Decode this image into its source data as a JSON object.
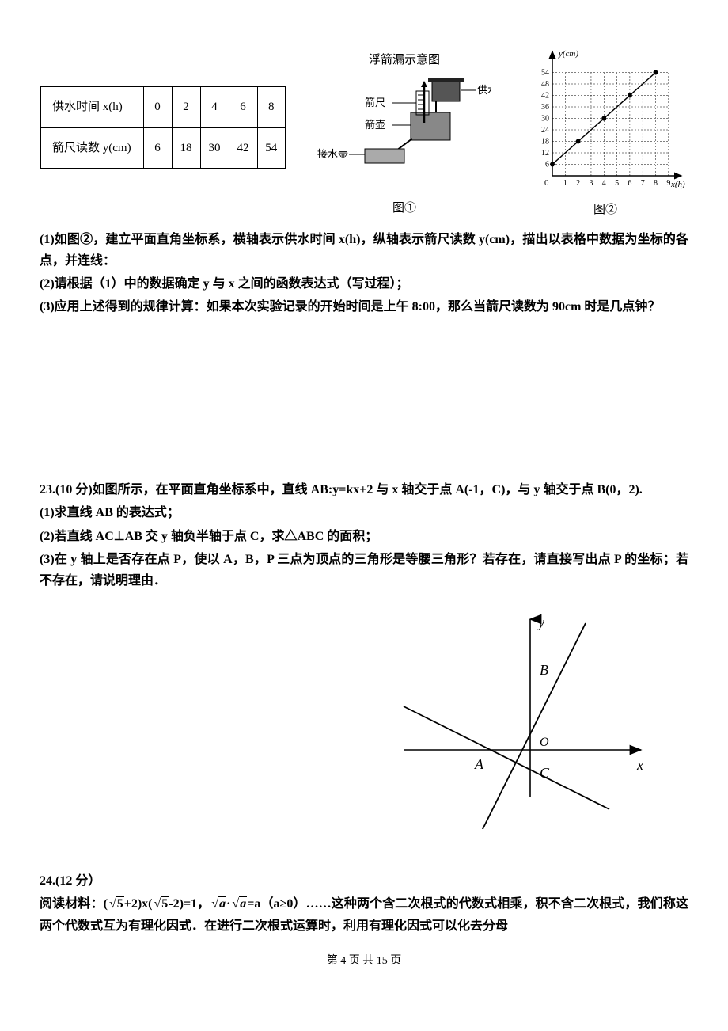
{
  "table": {
    "row1_header": "供水时间 x(h)",
    "row1": [
      "0",
      "2",
      "4",
      "6",
      "8"
    ],
    "row2_header": "箭尺读数 y(cm)",
    "row2": [
      "6",
      "18",
      "30",
      "42",
      "54"
    ]
  },
  "diagram1": {
    "title": "浮箭漏示意图",
    "labels": {
      "supply": "供水壶",
      "ruler": "箭尺",
      "arrow_pot": "箭壶",
      "receive": "接水壶"
    },
    "fig_label": "图①",
    "colors": {
      "stroke": "#000000",
      "fill_dark": "#333333"
    }
  },
  "chart": {
    "type": "scatter-line",
    "fig_label": "图②",
    "y_axis_label": "y(cm)",
    "x_axis_label": "x(h)",
    "x_ticks": [
      "1",
      "2",
      "3",
      "4",
      "5",
      "6",
      "7",
      "8",
      "9"
    ],
    "y_ticks": [
      "6",
      "12",
      "18",
      "24",
      "30",
      "36",
      "42",
      "48",
      "54"
    ],
    "points": [
      {
        "x": 0,
        "y": 6
      },
      {
        "x": 2,
        "y": 18
      },
      {
        "x": 4,
        "y": 30
      },
      {
        "x": 6,
        "y": 42
      },
      {
        "x": 8,
        "y": 54
      }
    ],
    "xlim": [
      0,
      9.5
    ],
    "ylim": [
      0,
      60
    ],
    "colors": {
      "axis": "#000000",
      "grid": "#000000",
      "point": "#000000",
      "line": "#000000",
      "bg": "#ffffff"
    },
    "marker_size": 3,
    "line_width": 1.5,
    "grid_dash": "2,2",
    "tick_fontsize": 10
  },
  "q_after_table": {
    "l1": "(1)如图②，建立平面直角坐标系，横轴表示供水时间 x(h)，纵轴表示箭尺读数 y(cm)，描出以表格中数据为坐标的各点，并连线：",
    "l2": "(2)请根据（1）中的数据确定 y 与 x 之间的函数表达式（写过程）；",
    "l3": "(3)应用上述得到的规律计算：如果本次实验记录的开始时间是上午 8:00，那么当箭尺读数为 90cm 时是几点钟？"
  },
  "q23": {
    "head": "23.(10 分)如图所示，在平面直角坐标系中，直线 AB:y=kx+2 与 x 轴交于点 A(-1，C)，与 y 轴交于点 B(0，2).",
    "l1": "(1)求直线 AB 的表达式；",
    "l2": "(2)若直线 AC⊥AB 交 y 轴负半轴于点 C，求△ABC 的面积；",
    "l3": "(3)在 y 轴上是否存在点 P，使以 A，B，P 三点为顶点的三角形是等腰三角形？若存在，请直接写出点 P 的坐标；若不存在，请说明理由．",
    "figure": {
      "labels": {
        "y": "y",
        "x": "x",
        "A": "A",
        "B": "B",
        "O": "O",
        "C": "C"
      },
      "colors": {
        "stroke": "#000000"
      },
      "line_width": 1.6,
      "points": {
        "A": [
          -1,
          0
        ],
        "B": [
          0,
          2
        ],
        "O": [
          0,
          0
        ],
        "C": [
          0,
          -0.5
        ]
      }
    }
  },
  "q24": {
    "head": "24.(12 分）",
    "body": "阅读材料：(√5+2)x(√5-2)=1，√a·√a=a（a≥0）……这种两个含二次根式的代数式相乘，积不含二次根式，我们称这两个代数式互为有理化因式．在进行二次根式运算时，利用有理化因式可以化去分母"
  },
  "footer": "第 4 页 共 15 页"
}
